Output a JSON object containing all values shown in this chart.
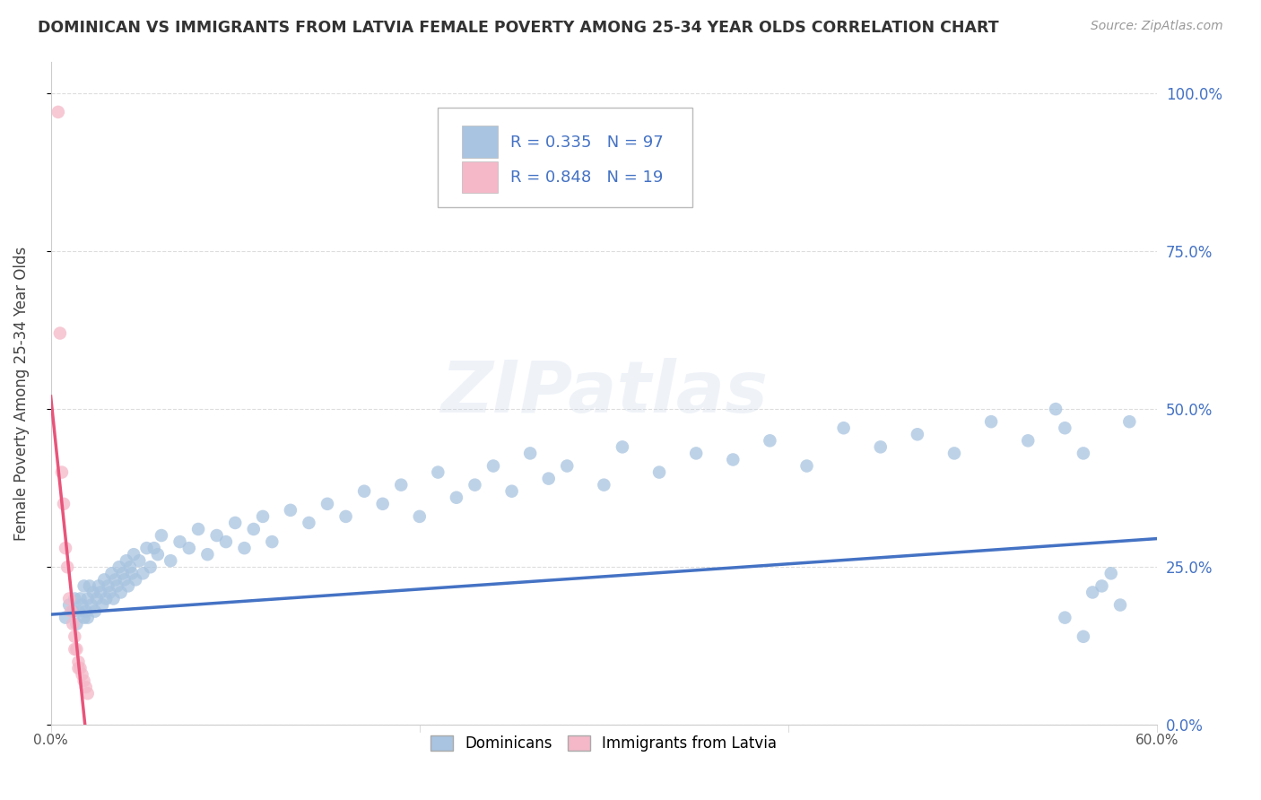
{
  "title": "DOMINICAN VS IMMIGRANTS FROM LATVIA FEMALE POVERTY AMONG 25-34 YEAR OLDS CORRELATION CHART",
  "source": "Source: ZipAtlas.com",
  "ylabel": "Female Poverty Among 25-34 Year Olds",
  "xlim": [
    0.0,
    0.6
  ],
  "ylim": [
    0.0,
    1.05
  ],
  "yticks": [
    0.0,
    0.25,
    0.5,
    0.75,
    1.0
  ],
  "yticklabels": [
    "0.0%",
    "25.0%",
    "50.0%",
    "75.0%",
    "100.0%"
  ],
  "xticks": [
    0.0,
    0.2,
    0.4,
    0.6
  ],
  "xticklabels": [
    "0.0%",
    "",
    "",
    "60.0%"
  ],
  "dominican_color": "#a8c4e0",
  "latvian_color": "#f4b8c8",
  "trendline_dominican_color": "#4472c4",
  "trendline_latvian_color": "#e8547a",
  "R_dominican": 0.335,
  "N_dominican": 97,
  "R_latvian": 0.848,
  "N_latvian": 19,
  "dom_trend_start_y": 0.175,
  "dom_trend_end_y": 0.295,
  "lat_trend_intercept": 0.52,
  "lat_trend_slope": -28.0,
  "dominican_x": [
    0.008,
    0.01,
    0.012,
    0.013,
    0.014,
    0.015,
    0.016,
    0.017,
    0.018,
    0.018,
    0.019,
    0.02,
    0.02,
    0.021,
    0.022,
    0.023,
    0.024,
    0.025,
    0.026,
    0.027,
    0.028,
    0.029,
    0.03,
    0.031,
    0.032,
    0.033,
    0.034,
    0.035,
    0.036,
    0.037,
    0.038,
    0.039,
    0.04,
    0.041,
    0.042,
    0.043,
    0.044,
    0.045,
    0.046,
    0.048,
    0.05,
    0.052,
    0.054,
    0.056,
    0.058,
    0.06,
    0.065,
    0.07,
    0.075,
    0.08,
    0.085,
    0.09,
    0.095,
    0.1,
    0.105,
    0.11,
    0.115,
    0.12,
    0.13,
    0.14,
    0.15,
    0.16,
    0.17,
    0.18,
    0.19,
    0.2,
    0.21,
    0.22,
    0.23,
    0.24,
    0.25,
    0.26,
    0.27,
    0.28,
    0.3,
    0.31,
    0.33,
    0.35,
    0.37,
    0.39,
    0.41,
    0.43,
    0.45,
    0.47,
    0.49,
    0.51,
    0.53,
    0.545,
    0.55,
    0.56,
    0.565,
    0.575,
    0.58,
    0.585,
    0.56,
    0.55,
    0.57
  ],
  "dominican_y": [
    0.17,
    0.19,
    0.18,
    0.2,
    0.16,
    0.18,
    0.2,
    0.19,
    0.17,
    0.22,
    0.18,
    0.2,
    0.17,
    0.22,
    0.19,
    0.21,
    0.18,
    0.2,
    0.22,
    0.21,
    0.19,
    0.23,
    0.2,
    0.22,
    0.21,
    0.24,
    0.2,
    0.23,
    0.22,
    0.25,
    0.21,
    0.24,
    0.23,
    0.26,
    0.22,
    0.25,
    0.24,
    0.27,
    0.23,
    0.26,
    0.24,
    0.28,
    0.25,
    0.28,
    0.27,
    0.3,
    0.26,
    0.29,
    0.28,
    0.31,
    0.27,
    0.3,
    0.29,
    0.32,
    0.28,
    0.31,
    0.33,
    0.29,
    0.34,
    0.32,
    0.35,
    0.33,
    0.37,
    0.35,
    0.38,
    0.33,
    0.4,
    0.36,
    0.38,
    0.41,
    0.37,
    0.43,
    0.39,
    0.41,
    0.38,
    0.44,
    0.4,
    0.43,
    0.42,
    0.45,
    0.41,
    0.47,
    0.44,
    0.46,
    0.43,
    0.48,
    0.45,
    0.5,
    0.47,
    0.43,
    0.21,
    0.24,
    0.19,
    0.48,
    0.14,
    0.17,
    0.22
  ],
  "latvian_x": [
    0.004,
    0.005,
    0.006,
    0.007,
    0.008,
    0.009,
    0.01,
    0.011,
    0.012,
    0.013,
    0.013,
    0.014,
    0.015,
    0.015,
    0.016,
    0.017,
    0.018,
    0.019,
    0.02
  ],
  "latvian_y": [
    0.97,
    0.62,
    0.4,
    0.35,
    0.28,
    0.25,
    0.2,
    0.18,
    0.16,
    0.14,
    0.12,
    0.12,
    0.1,
    0.09,
    0.09,
    0.08,
    0.07,
    0.06,
    0.05
  ]
}
